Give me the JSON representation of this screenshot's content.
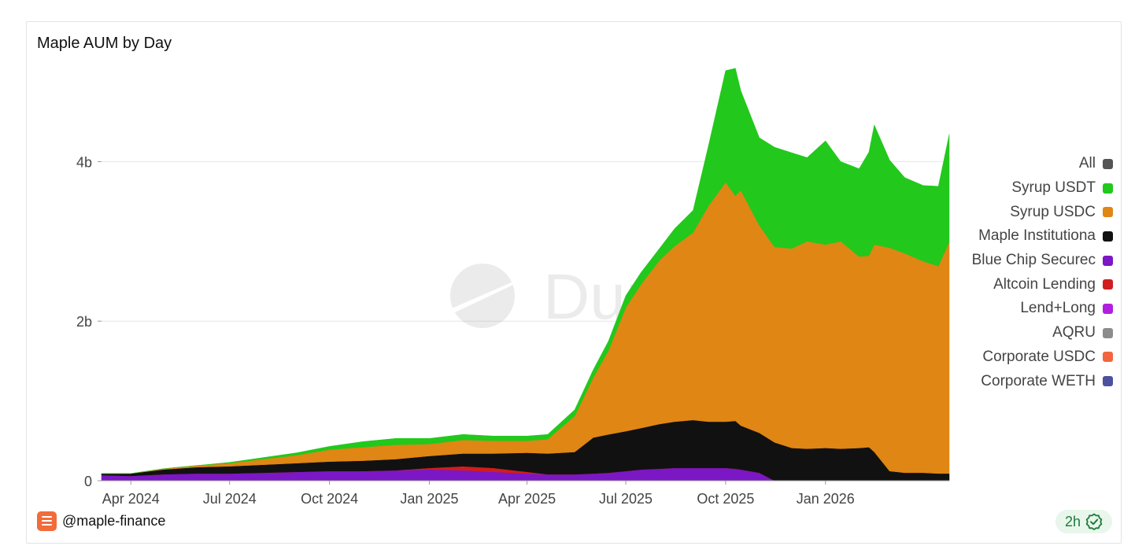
{
  "footer": {
    "handle": "@maple-finance",
    "refresh": "2h"
  },
  "watermark": "Dune",
  "chart_data": {
    "type": "area",
    "stacked": true,
    "title": "Maple AUM by Day",
    "xlabel": "",
    "ylabel": "",
    "xlim": [
      "2024-03-05",
      "2026-04-25"
    ],
    "ylim": [
      0,
      5000000000
    ],
    "y_ticks": [
      {
        "value": 0,
        "label": "0"
      },
      {
        "value": 2000000000,
        "label": "2b"
      },
      {
        "value": 4000000000,
        "label": "4b"
      }
    ],
    "x_ticks": [
      {
        "value": "2024-04-01",
        "label": "Apr 2024"
      },
      {
        "value": "2024-07-01",
        "label": "Jul 2024"
      },
      {
        "value": "2024-10-01",
        "label": "Oct 2024"
      },
      {
        "value": "2025-01-01",
        "label": "Jan 2025"
      },
      {
        "value": "2025-04-01",
        "label": "Apr 2025"
      },
      {
        "value": "2025-07-01",
        "label": "Jul 2025"
      },
      {
        "value": "2025-10-01",
        "label": "Oct 2025"
      },
      {
        "value": "2026-01-01",
        "label": "Jan 2026"
      }
    ],
    "grid": "horizontal",
    "legend_position": "right",
    "legend": [
      {
        "name": "All",
        "color": "#555555"
      },
      {
        "name": "Syrup USDT",
        "color": "#22c81c"
      },
      {
        "name": "Syrup USDC",
        "color": "#e08614"
      },
      {
        "name": "Maple Institutiona",
        "color": "#111111"
      },
      {
        "name": "Blue Chip Securec",
        "color": "#7b17c4"
      },
      {
        "name": "Altcoin Lending",
        "color": "#d11d1d"
      },
      {
        "name": "Lend+Long",
        "color": "#b01fe0"
      },
      {
        "name": "AQRU",
        "color": "#8c8c8c"
      },
      {
        "name": "Corporate USDC",
        "color": "#f2653f"
      },
      {
        "name": "Corporate WETH",
        "color": "#4d519e"
      }
    ],
    "x": [
      "2024-03-05",
      "2024-04-01",
      "2024-05-01",
      "2024-06-01",
      "2024-07-01",
      "2024-08-01",
      "2024-09-01",
      "2024-10-01",
      "2024-11-01",
      "2024-12-01",
      "2025-01-01",
      "2025-02-01",
      "2025-03-01",
      "2025-04-01",
      "2025-04-20",
      "2025-05-15",
      "2025-06-01",
      "2025-06-15",
      "2025-07-01",
      "2025-07-15",
      "2025-08-01",
      "2025-08-15",
      "2025-09-01",
      "2025-09-15",
      "2025-10-01",
      "2025-10-10",
      "2025-10-15",
      "2025-11-01",
      "2025-11-15",
      "2025-12-01",
      "2025-12-15",
      "2026-01-01",
      "2026-01-15",
      "2026-02-01",
      "2026-02-10",
      "2026-02-15",
      "2026-03-01",
      "2026-03-15",
      "2026-04-01",
      "2026-04-15",
      "2026-04-25"
    ],
    "series": [
      {
        "name": "Blue Chip Securec",
        "color": "#7b17c4",
        "values": [
          0.07,
          0.06,
          0.08,
          0.09,
          0.09,
          0.1,
          0.11,
          0.12,
          0.12,
          0.13,
          0.14,
          0.13,
          0.11,
          0.09,
          0.08,
          0.08,
          0.09,
          0.1,
          0.12,
          0.14,
          0.15,
          0.16,
          0.16,
          0.16,
          0.16,
          0.15,
          0.14,
          0.1,
          0,
          0,
          0,
          0,
          0,
          0,
          0,
          0,
          0,
          0,
          0,
          0,
          0
        ]
      },
      {
        "name": "Altcoin Lending",
        "color": "#d11d1d",
        "values": [
          0,
          0,
          0,
          0,
          0,
          0,
          0,
          0,
          0,
          0,
          0.02,
          0.05,
          0.05,
          0.02,
          0,
          0,
          0,
          0,
          0,
          0,
          0,
          0,
          0,
          0,
          0,
          0,
          0,
          0,
          0,
          0,
          0,
          0,
          0,
          0,
          0,
          0,
          0,
          0,
          0,
          0,
          0
        ]
      },
      {
        "name": "Lend+Long",
        "color": "#b01fe0",
        "values": [
          0,
          0,
          0,
          0,
          0,
          0,
          0,
          0,
          0,
          0,
          0,
          0,
          0,
          0,
          0,
          0,
          0,
          0,
          0,
          0,
          0,
          0,
          0,
          0,
          0,
          0,
          0,
          0,
          0,
          0,
          0,
          0,
          0,
          0,
          0,
          0,
          0,
          0,
          0,
          0,
          0
        ]
      },
      {
        "name": "Maple Institutiona",
        "color": "#111111",
        "values": [
          0.02,
          0.03,
          0.06,
          0.08,
          0.09,
          0.1,
          0.11,
          0.12,
          0.13,
          0.14,
          0.15,
          0.16,
          0.18,
          0.24,
          0.26,
          0.28,
          0.45,
          0.48,
          0.5,
          0.52,
          0.56,
          0.58,
          0.6,
          0.58,
          0.58,
          0.6,
          0.55,
          0.5,
          0.48,
          0.41,
          0.4,
          0.41,
          0.4,
          0.41,
          0.42,
          0.36,
          0.12,
          0.1,
          0.1,
          0.09,
          0.09
        ]
      },
      {
        "name": "Syrup USDC",
        "color": "#e08614",
        "values": [
          0,
          0,
          0.01,
          0.02,
          0.04,
          0.07,
          0.1,
          0.15,
          0.17,
          0.18,
          0.15,
          0.17,
          0.16,
          0.15,
          0.18,
          0.45,
          0.75,
          1.05,
          1.55,
          1.8,
          2.05,
          2.2,
          2.35,
          2.7,
          3.0,
          2.82,
          2.95,
          2.6,
          2.45,
          2.5,
          2.6,
          2.55,
          2.6,
          2.4,
          2.4,
          2.6,
          2.8,
          2.75,
          2.65,
          2.6,
          2.9
        ]
      },
      {
        "name": "Syrup USDT",
        "color": "#22c81c",
        "values": [
          0,
          0,
          0,
          0,
          0.01,
          0.02,
          0.03,
          0.04,
          0.07,
          0.08,
          0.07,
          0.07,
          0.06,
          0.06,
          0.06,
          0.08,
          0.1,
          0.12,
          0.15,
          0.15,
          0.15,
          0.22,
          0.28,
          0.75,
          1.4,
          1.6,
          1.25,
          1.1,
          1.25,
          1.2,
          1.05,
          1.3,
          1.0,
          1.1,
          1.3,
          1.5,
          1.1,
          0.95,
          0.95,
          1.0,
          1.35
        ]
      }
    ],
    "value_unit": "b"
  }
}
